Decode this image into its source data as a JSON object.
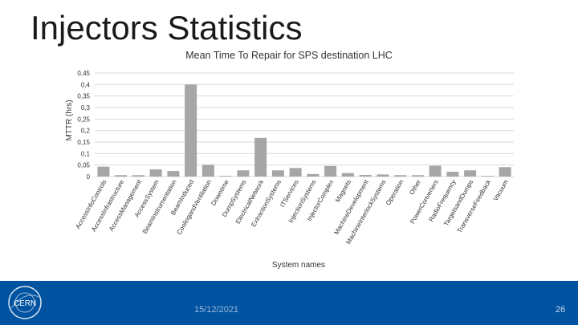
{
  "slide": {
    "title": "Injectors Statistics",
    "date": "15/12/2021",
    "page_number": "26",
    "logo_text": "CERN"
  },
  "colors": {
    "bar": "#a6a6a6",
    "grid": "#d9d9d9",
    "footer": "#0053a1"
  },
  "chart_data": {
    "type": "bar",
    "title": "Mean Time To Repair for SPS destination LHC",
    "xlabel": "System names",
    "ylabel": "MTTR (hrs)",
    "ylim": [
      0,
      0.45
    ],
    "yticks": [
      "0",
      "0,05",
      "0,1",
      "0,15",
      "0,2",
      "0,25",
      "0,3",
      "0,35",
      "0,4",
      "0,45"
    ],
    "grid": true,
    "categories": [
      "AccessInfoControls",
      "AccessInfrastructure",
      "AccessManagement",
      "AccessSystem",
      "BeamInstrumentation",
      "BeamInduced",
      "CoolingandVentilation",
      "Downtime",
      "DumpSystems",
      "ElectricalNetwork",
      "ExtractionSystems",
      "ITServices",
      "InjectionSystems",
      "InjectorComplex",
      "Magnets",
      "MachineDevelopment",
      "MachineInterlockSystems",
      "Operation",
      "Other",
      "PowerConverters",
      "RadioFrequency",
      "TargetsandDumps",
      "TransverseFeedback",
      "Vacuum"
    ],
    "values": [
      0.043,
      0.006,
      0.006,
      0.031,
      0.024,
      0.4,
      0.051,
      0.002,
      0.027,
      0.168,
      0.027,
      0.037,
      0.011,
      0.046,
      0.015,
      0.007,
      0.009,
      0.006,
      0.006,
      0.047,
      0.021,
      0.027,
      0.001,
      0.041
    ]
  }
}
